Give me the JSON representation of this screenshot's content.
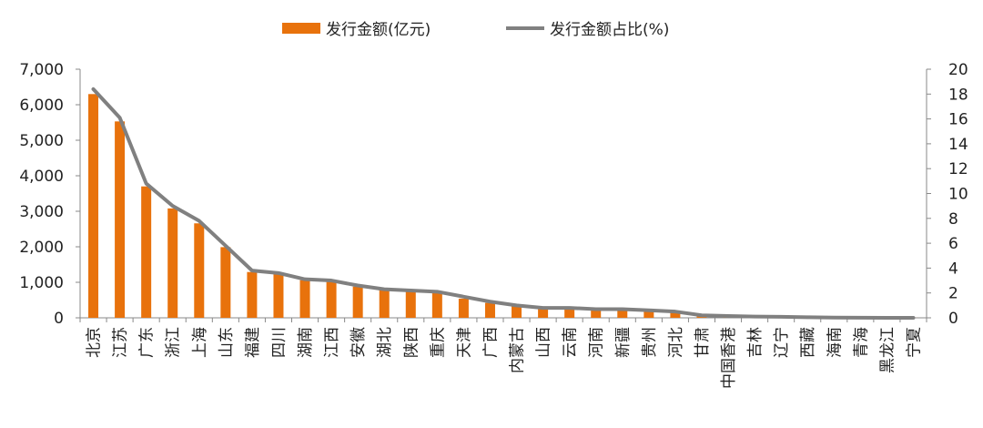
{
  "chart_data": {
    "type": "bar",
    "legend_position": "top",
    "grid": false,
    "categories": [
      "北京",
      "江苏",
      "广东",
      "浙江",
      "上海",
      "山东",
      "福建",
      "四川",
      "湖南",
      "江西",
      "安徽",
      "湖北",
      "陕西",
      "重庆",
      "天津",
      "广西",
      "内蒙古",
      "山西",
      "云南",
      "河南",
      "新疆",
      "贵州",
      "河北",
      "甘肃",
      "中国香港",
      "吉林",
      "辽宁",
      "西藏",
      "海南",
      "青海",
      "黑龙江",
      "宁夏"
    ],
    "series": [
      {
        "name": "发行金额(亿元)",
        "type": "bar",
        "axis": "left",
        "color": "#E8720C",
        "values": [
          6300,
          5530,
          3700,
          3080,
          2660,
          1990,
          1290,
          1240,
          1060,
          1010,
          880,
          790,
          760,
          700,
          540,
          420,
          340,
          250,
          240,
          220,
          210,
          200,
          180,
          60,
          40,
          30,
          25,
          15,
          5,
          3,
          2,
          1
        ]
      },
      {
        "name": "发行金额占比(%)",
        "type": "line",
        "axis": "right",
        "color": "#808080",
        "values": [
          18.4,
          16.1,
          10.8,
          9.0,
          7.8,
          5.8,
          3.8,
          3.6,
          3.1,
          3.0,
          2.6,
          2.3,
          2.2,
          2.1,
          1.7,
          1.3,
          1.0,
          0.8,
          0.8,
          0.7,
          0.7,
          0.6,
          0.5,
          0.2,
          0.15,
          0.1,
          0.08,
          0.05,
          0.02,
          0.01,
          0.0,
          0.0
        ]
      }
    ],
    "y_left": {
      "min": 0,
      "max": 7000,
      "ticks": [
        0,
        1000,
        2000,
        3000,
        4000,
        5000,
        6000,
        7000
      ],
      "tick_labels": [
        "0",
        "1,000",
        "2,000",
        "3,000",
        "4,000",
        "5,000",
        "6,000",
        "7,000"
      ]
    },
    "y_right": {
      "min": 0,
      "max": 20,
      "ticks": [
        0,
        2,
        4,
        6,
        8,
        10,
        12,
        14,
        16,
        18,
        20
      ],
      "tick_labels": [
        "0",
        "2",
        "4",
        "6",
        "8",
        "10",
        "12",
        "14",
        "16",
        "18",
        "20"
      ]
    }
  }
}
